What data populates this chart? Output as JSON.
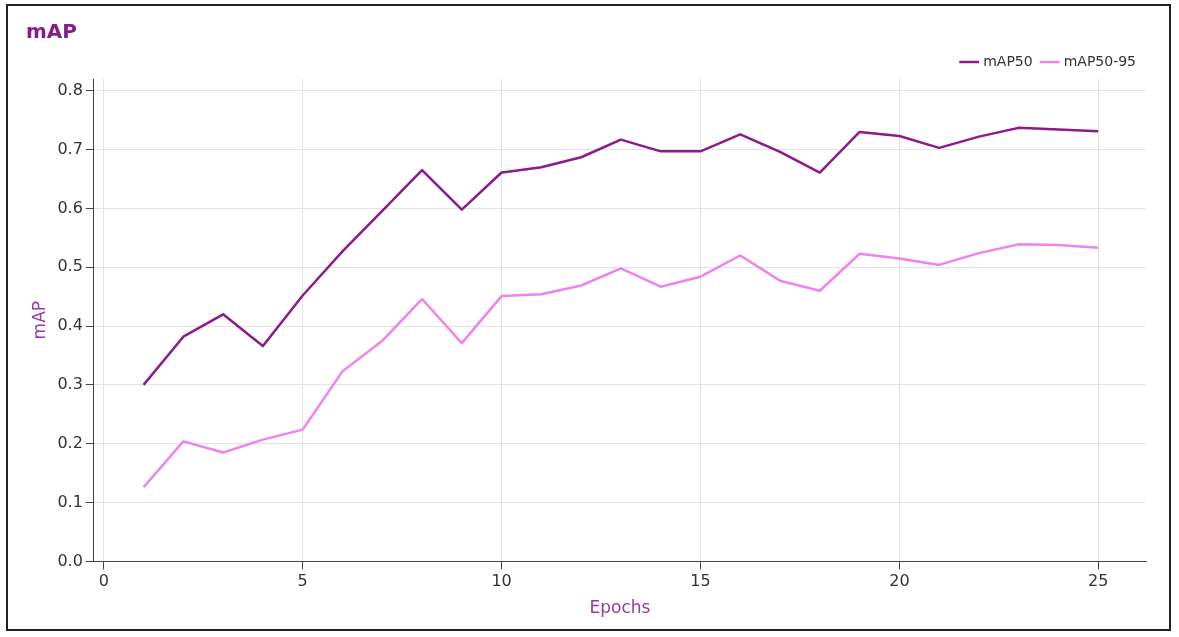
{
  "chart_data": {
    "type": "line",
    "title": "mAP",
    "xlabel": "Epochs",
    "ylabel": "mAP",
    "x": [
      1,
      2,
      3,
      4,
      5,
      6,
      7,
      8,
      9,
      10,
      11,
      12,
      13,
      14,
      15,
      16,
      17,
      18,
      19,
      20,
      21,
      22,
      23,
      24,
      25
    ],
    "series": [
      {
        "name": "mAP50",
        "color": "#8b1a8b",
        "values": [
          0.3,
          0.382,
          0.42,
          0.366,
          0.452,
          0.527,
          0.596,
          0.665,
          0.598,
          0.661,
          0.67,
          0.687,
          0.717,
          0.697,
          0.697,
          0.726,
          0.696,
          0.661,
          0.73,
          0.723,
          0.703,
          0.722,
          0.737,
          0.734,
          0.731
        ]
      },
      {
        "name": "mAP50-95",
        "color": "#ee82ee",
        "values": [
          0.126,
          0.204,
          0.185,
          0.207,
          0.224,
          0.323,
          0.375,
          0.446,
          0.371,
          0.451,
          0.454,
          0.469,
          0.498,
          0.467,
          0.484,
          0.52,
          0.477,
          0.46,
          0.523,
          0.515,
          0.504,
          0.524,
          0.539,
          0.538,
          0.533
        ]
      }
    ],
    "xlim": [
      -0.25,
      26.2
    ],
    "xticks": [
      0,
      5,
      10,
      15,
      20,
      25
    ],
    "ylim": [
      0,
      0.82
    ],
    "yticks": [
      {
        "value": 0,
        "label": "0.0"
      },
      {
        "value": 0.1,
        "label": "0.1"
      },
      {
        "value": 0.2,
        "label": "0.2"
      },
      {
        "value": 0.3,
        "label": "0.3"
      },
      {
        "value": 0.4,
        "label": "0.4"
      },
      {
        "value": 0.5,
        "label": "0.5"
      },
      {
        "value": 0.6,
        "label": "0.6"
      },
      {
        "value": 0.7,
        "label": "0.7"
      },
      {
        "value": 0.8,
        "label": "0.8"
      }
    ],
    "grid": true,
    "legend": "top right",
    "marker": "none",
    "line_style": "solid"
  }
}
